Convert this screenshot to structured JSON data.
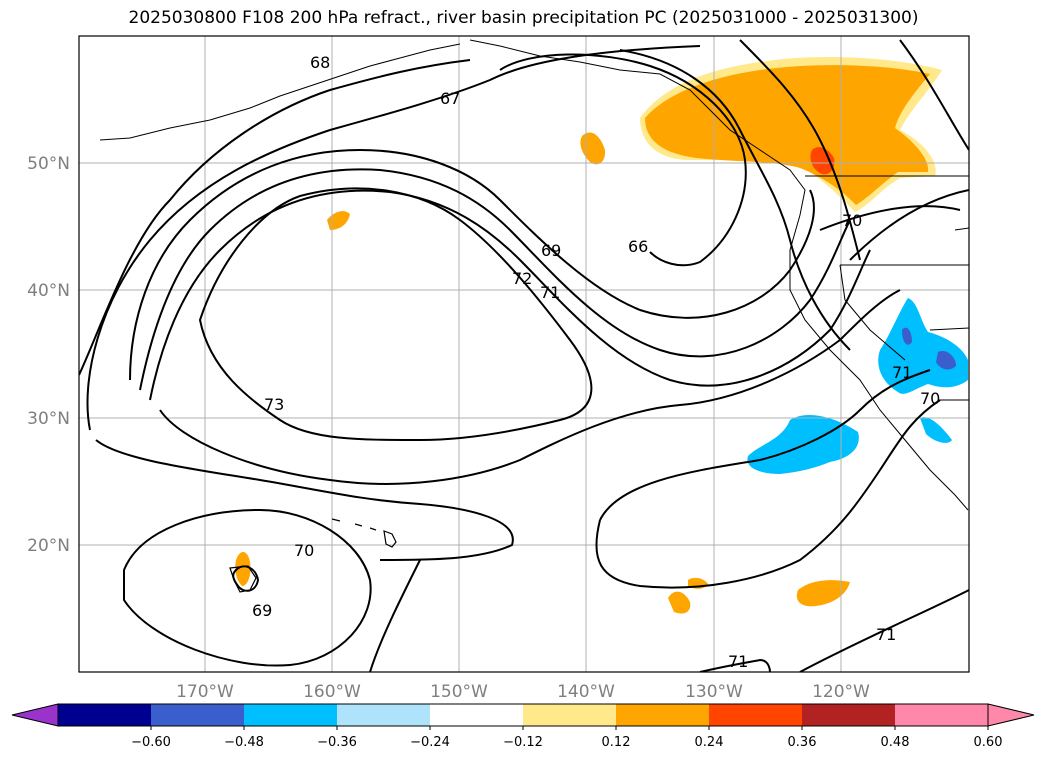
{
  "title": "2025030800 F108 200 hPa refract., river basin precipitation PC (2025031000 - 2025031300)",
  "map": {
    "lon_labels": [
      "170°W",
      "160°W",
      "150°W",
      "140°W",
      "130°W",
      "120°W"
    ],
    "lat_labels": [
      "50°N",
      "40°N",
      "30°N",
      "20°N"
    ],
    "contour_labels": [
      "68",
      "67",
      "69",
      "66",
      "72",
      "71",
      "70",
      "73",
      "70",
      "69",
      "71",
      "71",
      "71",
      "70"
    ],
    "gridlines": true
  },
  "colorbar": {
    "ticks": [
      "−0.60",
      "−0.48",
      "−0.36",
      "−0.24",
      "−0.12",
      "0.12",
      "0.24",
      "0.36",
      "0.48",
      "0.60"
    ],
    "colors": [
      "#9a33cc",
      "#000090",
      "#3a5fcd",
      "#00bfff",
      "#afe2fb",
      "#ffffff",
      "#ffe98a",
      "#ffa500",
      "#ff4500",
      "#b22222",
      "#ff88aa",
      "#ff88aa"
    ],
    "extend": "both"
  }
}
